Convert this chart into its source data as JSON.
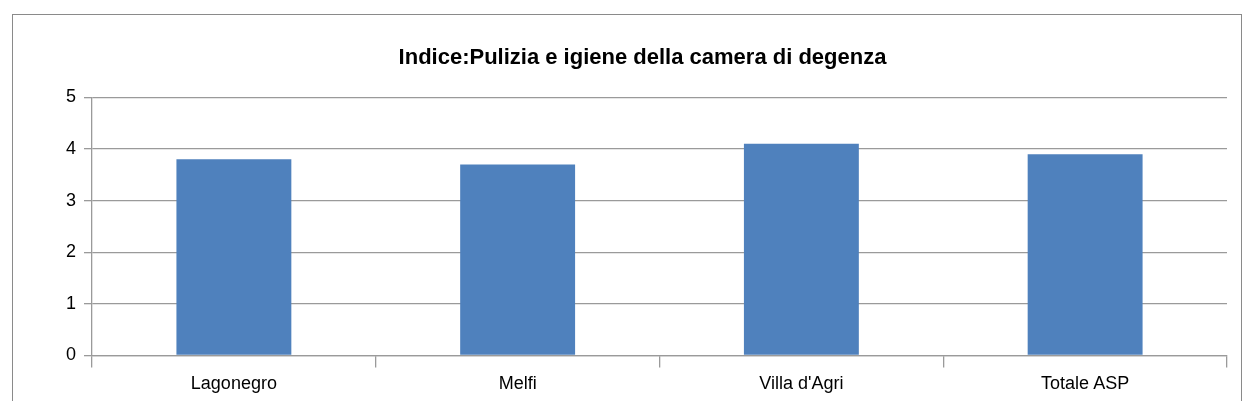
{
  "chart_data": {
    "type": "bar",
    "title": "Indice:Pulizia e igiene della camera di degenza",
    "categories": [
      "Lagonegro",
      "Melfi",
      "Villa d'Agri",
      "Totale ASP"
    ],
    "values": [
      3.8,
      3.7,
      4.1,
      3.9
    ],
    "color": "#4f81bd",
    "ylim": [
      0,
      5
    ],
    "yticks": [
      0,
      1,
      2,
      3,
      4,
      5
    ],
    "grid": "y",
    "legend": false
  }
}
